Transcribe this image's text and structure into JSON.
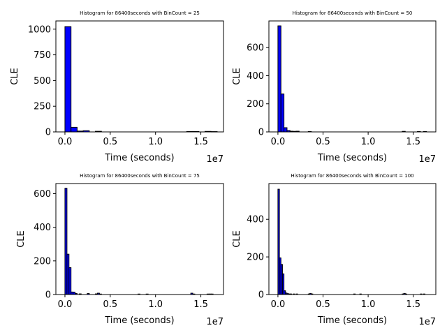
{
  "figure": {
    "background": "#ffffff",
    "bar_fill": "#0000ff",
    "bar_edge": "#000000"
  },
  "chart_data": [
    {
      "type": "bar",
      "histogram": true,
      "title": "Histogram for 86400seconds with BinCount = 25",
      "xlabel": "Time (seconds)",
      "ylabel": "CLE",
      "x_offset_label": "1e7",
      "xlim": [
        -1000000,
        17500000
      ],
      "ylim": [
        0,
        1080
      ],
      "xticks": [
        0,
        5000000,
        10000000,
        15000000
      ],
      "xtick_labels": [
        "0.0",
        "0.5",
        "1.0",
        "1.5"
      ],
      "yticks": [
        0,
        250,
        500,
        750,
        1000
      ],
      "ytick_labels": [
        "0",
        "250",
        "500",
        "750",
        "1000"
      ],
      "bin_width": 672000,
      "bins": [
        {
          "x": 0,
          "value": 1025
        },
        {
          "x": 672000,
          "value": 45
        },
        {
          "x": 1344000,
          "value": 8
        },
        {
          "x": 2016000,
          "value": 12
        },
        {
          "x": 3360000,
          "value": 6
        },
        {
          "x": 13440000,
          "value": 4
        },
        {
          "x": 14112000,
          "value": 4
        },
        {
          "x": 15456000,
          "value": 5
        },
        {
          "x": 16128000,
          "value": 3
        }
      ]
    },
    {
      "type": "bar",
      "histogram": true,
      "title": "Histogram for 86400seconds with BinCount = 50",
      "xlabel": "Time (seconds)",
      "ylabel": "CLE",
      "x_offset_label": "1e7",
      "xlim": [
        -1000000,
        17500000
      ],
      "ylim": [
        0,
        790
      ],
      "xticks": [
        0,
        5000000,
        10000000,
        15000000
      ],
      "xtick_labels": [
        "0.0",
        "0.5",
        "1.0",
        "1.5"
      ],
      "yticks": [
        0,
        200,
        400,
        600
      ],
      "ytick_labels": [
        "0",
        "200",
        "400",
        "600"
      ],
      "bin_width": 336000,
      "bins": [
        {
          "x": 0,
          "value": 755
        },
        {
          "x": 336000,
          "value": 270
        },
        {
          "x": 672000,
          "value": 30
        },
        {
          "x": 1008000,
          "value": 10
        },
        {
          "x": 1344000,
          "value": 5
        },
        {
          "x": 1680000,
          "value": 4
        },
        {
          "x": 2016000,
          "value": 5
        },
        {
          "x": 3360000,
          "value": 3
        },
        {
          "x": 13776000,
          "value": 4
        },
        {
          "x": 15456000,
          "value": 3
        },
        {
          "x": 16128000,
          "value": 3
        }
      ]
    },
    {
      "type": "bar",
      "histogram": true,
      "title": "Histogram for 86400seconds with BinCount = 75",
      "xlabel": "Time (seconds)",
      "ylabel": "CLE",
      "x_offset_label": "1e7",
      "xlim": [
        -1000000,
        17500000
      ],
      "ylim": [
        0,
        660
      ],
      "xticks": [
        0,
        5000000,
        10000000,
        15000000
      ],
      "xtick_labels": [
        "0.0",
        "0.5",
        "1.0",
        "1.5"
      ],
      "yticks": [
        0,
        200,
        400,
        600
      ],
      "ytick_labels": [
        "0",
        "200",
        "400",
        "600"
      ],
      "bin_width": 224000,
      "bins": [
        {
          "x": 0,
          "value": 632
        },
        {
          "x": 224000,
          "value": 240
        },
        {
          "x": 448000,
          "value": 160
        },
        {
          "x": 672000,
          "value": 15
        },
        {
          "x": 896000,
          "value": 14
        },
        {
          "x": 1120000,
          "value": 6
        },
        {
          "x": 1568000,
          "value": 4
        },
        {
          "x": 2464000,
          "value": 6
        },
        {
          "x": 3360000,
          "value": 4
        },
        {
          "x": 3584000,
          "value": 8
        },
        {
          "x": 3808000,
          "value": 3
        },
        {
          "x": 8064000,
          "value": 3
        },
        {
          "x": 8960000,
          "value": 3
        },
        {
          "x": 13888000,
          "value": 8
        },
        {
          "x": 14112000,
          "value": 3
        },
        {
          "x": 15680000,
          "value": 3
        },
        {
          "x": 15904000,
          "value": 3
        },
        {
          "x": 16128000,
          "value": 3
        }
      ]
    },
    {
      "type": "bar",
      "histogram": true,
      "title": "Histogram for 86400seconds with BinCount = 100",
      "xlabel": "Time (seconds)",
      "ylabel": "CLE",
      "x_offset_label": "1e7",
      "xlim": [
        -1000000,
        17500000
      ],
      "ylim": [
        0,
        590
      ],
      "xticks": [
        0,
        5000000,
        10000000,
        15000000
      ],
      "xtick_labels": [
        "0.0",
        "0.5",
        "1.0",
        "1.5"
      ],
      "yticks": [
        0,
        200,
        400
      ],
      "ytick_labels": [
        "0",
        "200",
        "400"
      ],
      "bin_width": 168000,
      "bins": [
        {
          "x": 0,
          "value": 560
        },
        {
          "x": 168000,
          "value": 195
        },
        {
          "x": 336000,
          "value": 160
        },
        {
          "x": 504000,
          "value": 110
        },
        {
          "x": 672000,
          "value": 20
        },
        {
          "x": 840000,
          "value": 8
        },
        {
          "x": 1008000,
          "value": 5
        },
        {
          "x": 1176000,
          "value": 3
        },
        {
          "x": 1344000,
          "value": 3
        },
        {
          "x": 1680000,
          "value": 3
        },
        {
          "x": 2016000,
          "value": 3
        },
        {
          "x": 3360000,
          "value": 3
        },
        {
          "x": 3528000,
          "value": 6
        },
        {
          "x": 3696000,
          "value": 3
        },
        {
          "x": 8400000,
          "value": 3
        },
        {
          "x": 9072000,
          "value": 3
        },
        {
          "x": 13776000,
          "value": 3
        },
        {
          "x": 13944000,
          "value": 6
        },
        {
          "x": 14112000,
          "value": 3
        },
        {
          "x": 15792000,
          "value": 3
        },
        {
          "x": 16128000,
          "value": 3
        }
      ]
    }
  ]
}
